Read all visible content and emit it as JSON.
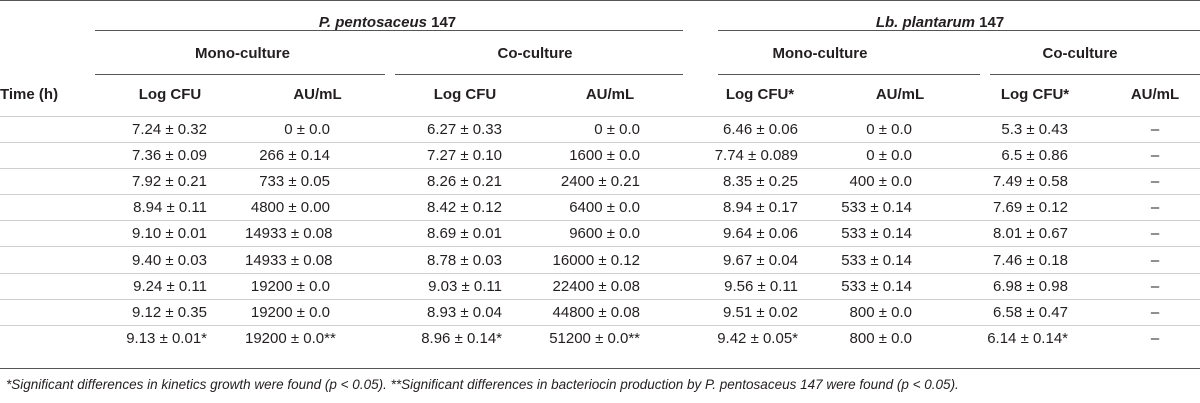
{
  "header": {
    "group1": {
      "species": "P. pentosaceus",
      "strain": "147"
    },
    "group2": {
      "species": "Lb. plantarum",
      "strain": "147"
    },
    "mono": "Mono-culture",
    "co": "Co-culture",
    "time_col": "Time (h)",
    "columns": [
      "Log CFU",
      "AU/mL",
      "Log CFU",
      "AU/mL",
      "Log CFU*",
      "AU/mL",
      "Log CFU*",
      "AU/mL"
    ]
  },
  "rows": [
    {
      "time": "",
      "c": [
        "7.24 ± 0.32",
        "0 ± 0.0",
        "6.27 ± 0.33",
        "0 ± 0.0",
        "6.46 ± 0.06",
        "0 ± 0.0",
        "5.3 ± 0.43",
        "–"
      ]
    },
    {
      "time": "",
      "c": [
        "7.36 ± 0.09",
        "266 ± 0.14",
        "7.27 ± 0.10",
        "1600 ± 0.0",
        "7.74 ± 0.089",
        "0 ± 0.0",
        "6.5 ± 0.86",
        "–"
      ]
    },
    {
      "time": "",
      "c": [
        "7.92 ± 0.21",
        "733 ± 0.05",
        "8.26 ± 0.21",
        "2400 ± 0.21",
        "8.35 ± 0.25",
        "400 ± 0.0",
        "7.49 ± 0.58",
        "–"
      ]
    },
    {
      "time": "",
      "c": [
        "8.94 ± 0.11",
        "4800 ± 0.00",
        "8.42 ± 0.12",
        "6400 ± 0.0",
        "8.94 ± 0.17",
        "533 ± 0.14",
        "7.69 ± 0.12",
        "–"
      ]
    },
    {
      "time": "",
      "c": [
        "9.10 ± 0.01",
        "14933 ± 0.08",
        "8.69 ± 0.01",
        "9600 ± 0.0",
        "9.64 ± 0.06",
        "533 ± 0.14",
        "8.01 ± 0.67",
        "–"
      ]
    },
    {
      "time": "",
      "c": [
        "9.40 ± 0.03",
        "14933 ± 0.08",
        "8.78 ± 0.03",
        "16000 ± 0.12",
        "9.67 ± 0.04",
        "533 ± 0.14",
        "7.46 ± 0.18",
        "–"
      ]
    },
    {
      "time": "",
      "c": [
        "9.24 ± 0.11",
        "19200 ± 0.0",
        "9.03 ± 0.11",
        "22400 ± 0.08",
        "9.56 ± 0.11",
        "533 ± 0.14",
        "6.98 ± 0.98",
        "–"
      ]
    },
    {
      "time": "",
      "c": [
        "9.12 ± 0.35",
        "19200 ± 0.0",
        "8.93 ± 0.04",
        "44800 ± 0.08",
        "9.51 ± 0.02",
        "800 ± 0.0",
        "6.58 ± 0.47",
        "–"
      ]
    },
    {
      "time": "",
      "c": [
        "9.13 ± 0.01*",
        "19200 ± 0.0**",
        "8.96 ± 0.14*",
        "51200 ± 0.0**",
        "9.42 ± 0.05*",
        "800 ± 0.0",
        "6.14 ± 0.14*",
        "–"
      ]
    }
  ],
  "footnote": "*Significant differences in kinetics growth were found (p < 0.05). **Significant differences in bacteriocin production by P. pentosaceus 147 were found (p < 0.05)."
}
